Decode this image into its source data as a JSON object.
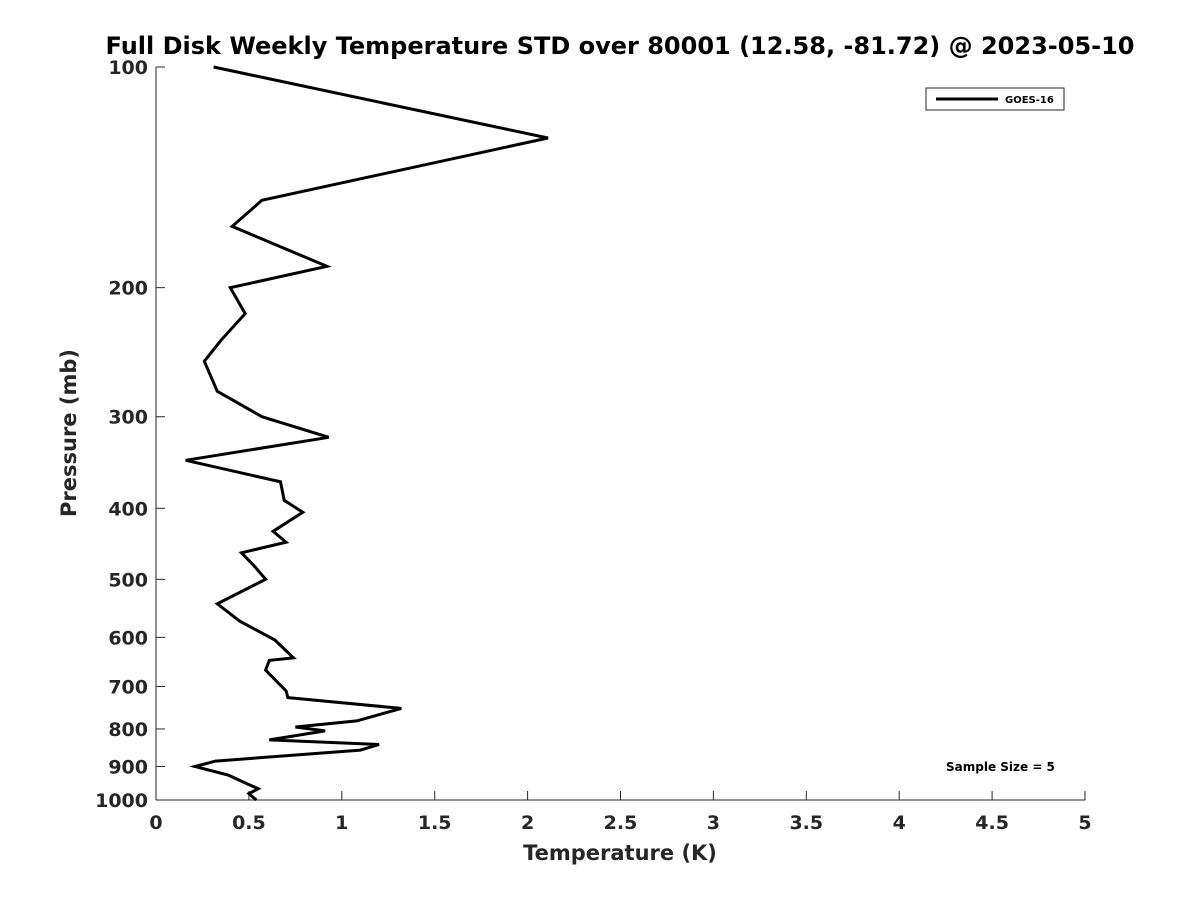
{
  "chart_data": {
    "type": "line",
    "title": "Full Disk Weekly Temperature STD over 80001 (12.58, -81.72) @ 2023-05-10",
    "xlabel": "Temperature (K)",
    "ylabel": "Pressure (mb)",
    "xlim": [
      0,
      5
    ],
    "ylim": [
      100,
      1000
    ],
    "yscale": "log",
    "yreversed": true,
    "xticks": [
      0,
      0.5,
      1,
      1.5,
      2,
      2.5,
      3,
      3.5,
      4,
      4.5,
      5
    ],
    "xtick_labels": [
      "0",
      "0.5",
      "1",
      "1.5",
      "2",
      "2.5",
      "3",
      "3.5",
      "4",
      "4.5",
      "5"
    ],
    "yticks": [
      100,
      200,
      300,
      400,
      500,
      600,
      700,
      800,
      900,
      1000
    ],
    "ytick_labels": [
      "100",
      "200",
      "300",
      "400",
      "500",
      "600",
      "700",
      "800",
      "900",
      "1000"
    ],
    "grid": false,
    "legend_position": "top-right",
    "annotation": "Sample Size = 5",
    "series": [
      {
        "name": "GOES-16",
        "color": "#000000",
        "temperature": [
          0.31,
          2.11,
          0.57,
          0.41,
          0.92,
          0.4,
          0.48,
          0.35,
          0.26,
          0.33,
          0.57,
          0.93,
          0.16,
          0.67,
          0.69,
          0.79,
          0.63,
          0.7,
          0.46,
          0.53,
          0.59,
          0.33,
          0.45,
          0.64,
          0.74,
          0.61,
          0.59,
          0.64,
          0.7,
          0.71,
          1.32,
          1.08,
          0.75,
          0.91,
          0.61,
          1.2,
          1.1,
          0.32,
          0.21,
          0.39,
          0.49,
          0.55,
          0.5,
          0.54
        ],
        "pressure": [
          100,
          125,
          152,
          165,
          187,
          200,
          217,
          236,
          252,
          277,
          300,
          320,
          344,
          368,
          390,
          405,
          430,
          445,
          460,
          480,
          500,
          540,
          570,
          605,
          640,
          645,
          665,
          685,
          710,
          725,
          750,
          780,
          795,
          805,
          828,
          840,
          855,
          885,
          900,
          925,
          950,
          965,
          980,
          1000
        ]
      }
    ]
  }
}
